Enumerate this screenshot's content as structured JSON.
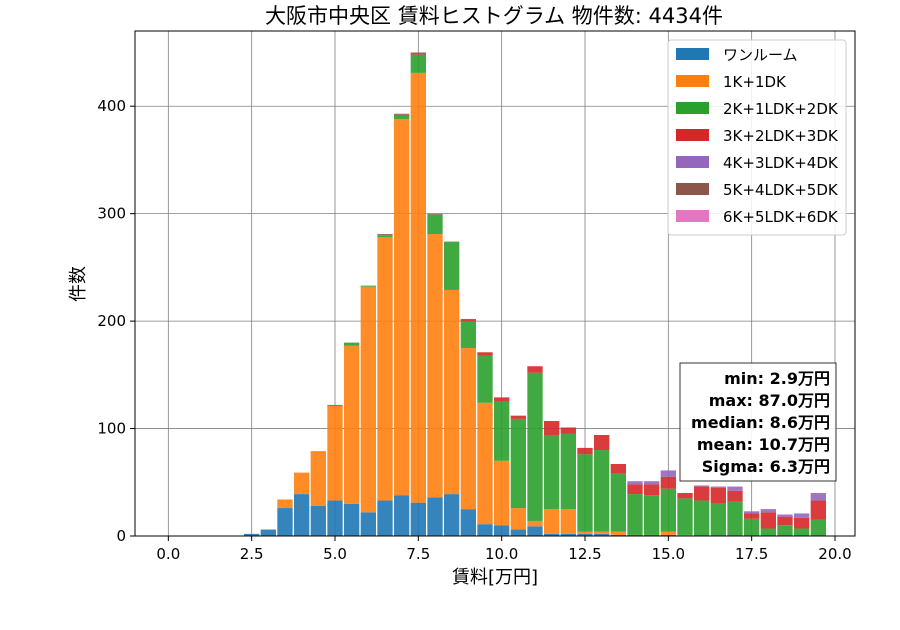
{
  "chart_data": {
    "type": "bar",
    "stacked": true,
    "title": "大阪市中央区 賃料ヒストグラム 物件数: 4434件",
    "xlabel": "賃料[万円]",
    "ylabel": "件数",
    "xlim": [
      -1,
      20.6
    ],
    "ylim": [
      0,
      470
    ],
    "xticks": [
      0.0,
      2.5,
      5.0,
      7.5,
      10.0,
      12.5,
      15.0,
      17.5,
      20.0
    ],
    "xtick_labels": [
      "0.0",
      "2.5",
      "5.0",
      "7.5",
      "10.0",
      "12.5",
      "15.0",
      "17.5",
      "20.0"
    ],
    "yticks": [
      0,
      100,
      200,
      300,
      400
    ],
    "ytick_labels": [
      "0",
      "100",
      "200",
      "300",
      "400"
    ],
    "grid": true,
    "legend_position": "top-right",
    "bin_width": 0.5,
    "x": [
      2.5,
      3.0,
      3.5,
      4.0,
      4.5,
      5.0,
      5.5,
      6.0,
      6.5,
      7.0,
      7.5,
      8.0,
      8.5,
      9.0,
      9.5,
      10.0,
      10.5,
      11.0,
      11.5,
      12.0,
      12.5,
      13.0,
      13.5,
      14.0,
      14.5,
      15.0,
      15.5,
      16.0,
      16.5,
      17.0,
      17.5,
      18.0,
      18.5,
      19.0,
      19.5
    ],
    "series": [
      {
        "name": "ワンルーム",
        "color": "#1f77b4",
        "values": [
          2,
          6,
          26,
          39,
          28,
          33,
          30,
          22,
          33,
          38,
          31,
          36,
          39,
          25,
          11,
          10,
          6,
          9,
          2,
          2,
          2,
          2,
          1,
          1,
          1,
          1,
          0,
          0,
          0,
          0,
          0,
          0,
          0,
          0,
          0
        ]
      },
      {
        "name": "1K+1DK",
        "color": "#ff7f0e",
        "values": [
          0,
          0,
          8,
          20,
          51,
          88,
          147,
          210,
          245,
          350,
          400,
          245,
          190,
          150,
          113,
          60,
          20,
          5,
          23,
          23,
          2,
          2,
          3,
          0,
          0,
          3,
          1,
          0,
          0,
          0,
          0,
          0,
          0,
          0,
          0
        ]
      },
      {
        "name": "2K+1LDK+2DK",
        "color": "#2ca02c",
        "values": [
          0,
          0,
          0,
          0,
          0,
          1,
          3,
          1,
          2,
          3,
          16,
          18,
          45,
          25,
          44,
          55,
          83,
          138,
          69,
          70,
          72,
          76,
          54,
          38,
          37,
          40,
          34,
          33,
          30,
          32,
          16,
          7,
          10,
          7,
          15
        ]
      },
      {
        "name": "3K+2LDK+3DK",
        "color": "#d62728",
        "values": [
          0,
          0,
          0,
          0,
          0,
          0,
          0,
          0,
          0,
          1,
          1,
          0,
          0,
          1,
          3,
          4,
          3,
          6,
          13,
          6,
          6,
          14,
          9,
          9,
          10,
          11,
          5,
          13,
          15,
          10,
          5,
          15,
          8,
          10,
          18
        ]
      },
      {
        "name": "4K+3LDK+4DK",
        "color": "#9467bd",
        "values": [
          0,
          0,
          0,
          0,
          0,
          0,
          0,
          0,
          0,
          0,
          0,
          0,
          0,
          0,
          0,
          0,
          0,
          0,
          0,
          0,
          0,
          0,
          0,
          3,
          3,
          6,
          0,
          1,
          1,
          4,
          2,
          3,
          2,
          4,
          7
        ]
      },
      {
        "name": "5K+4LDK+5DK",
        "color": "#8c564b",
        "values": [
          0,
          0,
          0,
          0,
          0,
          0,
          0,
          0,
          1,
          1,
          2,
          1,
          0,
          1,
          0,
          0,
          0,
          0,
          0,
          0,
          0,
          0,
          0,
          0,
          0,
          0,
          0,
          0,
          0,
          0,
          0,
          0,
          0,
          0,
          0
        ]
      },
      {
        "name": "6K+5LDK+6DK",
        "color": "#e377c2",
        "values": [
          0,
          0,
          0,
          0,
          0,
          0,
          0,
          0,
          0,
          0,
          0,
          0,
          0,
          0,
          0,
          0,
          0,
          0,
          0,
          0,
          0,
          0,
          0,
          0,
          0,
          0,
          0,
          0,
          0,
          0,
          0,
          0,
          0,
          0,
          0
        ]
      }
    ],
    "annotation": {
      "lines": [
        "min: 2.9万円",
        "max: 87.0万円",
        "median: 8.6万円",
        "mean: 10.7万円",
        "Sigma: 6.3万円"
      ]
    }
  }
}
